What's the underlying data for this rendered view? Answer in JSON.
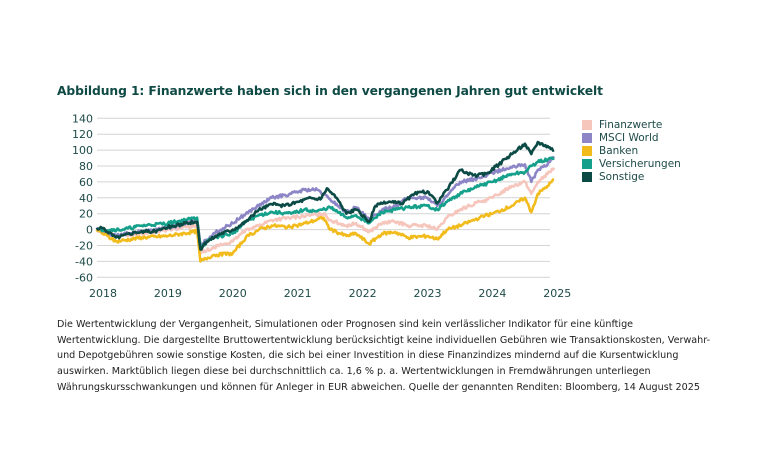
{
  "title": "Abbildung 1: Finanzwerte haben sich in den vergangenen Jahren gut entwickelt",
  "chart_data": {
    "type": "line",
    "title": "Abbildung 1: Finanzwerte haben sich in den vergangenen Jahren gut entwickelt",
    "xlabel": "",
    "ylabel": "",
    "xlim": [
      2017.9,
      2025
    ],
    "ylim": [
      -60,
      140
    ],
    "x_ticks": [
      "2018",
      "2019",
      "2020",
      "2021",
      "2022",
      "2023",
      "2024",
      "2025"
    ],
    "y_ticks": [
      "140",
      "120",
      "100",
      "80",
      "60",
      "40",
      "20",
      "0",
      "-20",
      "-40",
      "-60"
    ],
    "grid": "horizontal",
    "legend": "right",
    "series": [
      {
        "name": "Finanzwerte",
        "color": "#f6c6bd",
        "points": [
          [
            2017.9,
            0
          ],
          [
            2018.2,
            -8
          ],
          [
            2018.6,
            -5
          ],
          [
            2019.0,
            0
          ],
          [
            2019.45,
            5
          ],
          [
            2019.5,
            -30
          ],
          [
            2019.7,
            -22
          ],
          [
            2020.0,
            -15
          ],
          [
            2020.2,
            0
          ],
          [
            2020.4,
            5
          ],
          [
            2020.6,
            12
          ],
          [
            2020.9,
            15
          ],
          [
            2021.2,
            18
          ],
          [
            2021.4,
            20
          ],
          [
            2021.5,
            12
          ],
          [
            2021.75,
            5
          ],
          [
            2021.9,
            8
          ],
          [
            2022.1,
            -3
          ],
          [
            2022.3,
            8
          ],
          [
            2022.5,
            10
          ],
          [
            2022.7,
            5
          ],
          [
            2023.0,
            5
          ],
          [
            2023.15,
            0
          ],
          [
            2023.3,
            15
          ],
          [
            2023.5,
            25
          ],
          [
            2023.8,
            35
          ],
          [
            2024.0,
            40
          ],
          [
            2024.3,
            55
          ],
          [
            2024.5,
            60
          ],
          [
            2024.6,
            45
          ],
          [
            2024.7,
            60
          ],
          [
            2024.85,
            70
          ],
          [
            2024.95,
            78
          ]
        ]
      },
      {
        "name": "MSCI World",
        "color": "#8c86c6",
        "points": [
          [
            2017.9,
            0
          ],
          [
            2018.2,
            -8
          ],
          [
            2018.5,
            -3
          ],
          [
            2019.0,
            2
          ],
          [
            2019.45,
            12
          ],
          [
            2019.5,
            -20
          ],
          [
            2019.7,
            -5
          ],
          [
            2020.0,
            8
          ],
          [
            2020.2,
            20
          ],
          [
            2020.4,
            30
          ],
          [
            2020.6,
            40
          ],
          [
            2020.9,
            45
          ],
          [
            2021.1,
            50
          ],
          [
            2021.3,
            50
          ],
          [
            2021.5,
            38
          ],
          [
            2021.75,
            22
          ],
          [
            2021.9,
            28
          ],
          [
            2022.1,
            12
          ],
          [
            2022.3,
            25
          ],
          [
            2022.5,
            30
          ],
          [
            2022.7,
            40
          ],
          [
            2023.0,
            40
          ],
          [
            2023.15,
            30
          ],
          [
            2023.3,
            42
          ],
          [
            2023.5,
            60
          ],
          [
            2023.8,
            65
          ],
          [
            2024.0,
            72
          ],
          [
            2024.3,
            78
          ],
          [
            2024.5,
            82
          ],
          [
            2024.6,
            60
          ],
          [
            2024.7,
            75
          ],
          [
            2024.85,
            82
          ],
          [
            2024.95,
            92
          ]
        ]
      },
      {
        "name": "Banken",
        "color": "#f2bb1c",
        "points": [
          [
            2017.9,
            0
          ],
          [
            2018.2,
            -15
          ],
          [
            2018.6,
            -10
          ],
          [
            2019.0,
            -8
          ],
          [
            2019.45,
            -2
          ],
          [
            2019.5,
            -40
          ],
          [
            2019.7,
            -32
          ],
          [
            2020.0,
            -30
          ],
          [
            2020.2,
            -10
          ],
          [
            2020.4,
            0
          ],
          [
            2020.6,
            5
          ],
          [
            2020.9,
            3
          ],
          [
            2021.2,
            10
          ],
          [
            2021.4,
            15
          ],
          [
            2021.5,
            0
          ],
          [
            2021.75,
            -8
          ],
          [
            2021.9,
            -5
          ],
          [
            2022.1,
            -18
          ],
          [
            2022.3,
            -5
          ],
          [
            2022.5,
            -3
          ],
          [
            2022.7,
            -10
          ],
          [
            2023.0,
            -8
          ],
          [
            2023.15,
            -12
          ],
          [
            2023.3,
            0
          ],
          [
            2023.5,
            5
          ],
          [
            2023.8,
            15
          ],
          [
            2024.0,
            20
          ],
          [
            2024.3,
            30
          ],
          [
            2024.5,
            40
          ],
          [
            2024.6,
            22
          ],
          [
            2024.7,
            45
          ],
          [
            2024.85,
            55
          ],
          [
            2024.95,
            63
          ]
        ]
      },
      {
        "name": "Versicherungen",
        "color": "#14a08a",
        "points": [
          [
            2017.9,
            0
          ],
          [
            2018.3,
            0
          ],
          [
            2018.6,
            5
          ],
          [
            2019.0,
            8
          ],
          [
            2019.45,
            15
          ],
          [
            2019.5,
            -22
          ],
          [
            2019.7,
            -10
          ],
          [
            2020.0,
            -5
          ],
          [
            2020.2,
            10
          ],
          [
            2020.4,
            18
          ],
          [
            2020.6,
            22
          ],
          [
            2020.9,
            20
          ],
          [
            2021.1,
            25
          ],
          [
            2021.3,
            23
          ],
          [
            2021.5,
            28
          ],
          [
            2021.75,
            15
          ],
          [
            2021.9,
            18
          ],
          [
            2022.1,
            8
          ],
          [
            2022.3,
            22
          ],
          [
            2022.5,
            25
          ],
          [
            2022.7,
            28
          ],
          [
            2023.0,
            30
          ],
          [
            2023.15,
            25
          ],
          [
            2023.3,
            35
          ],
          [
            2023.5,
            45
          ],
          [
            2023.8,
            55
          ],
          [
            2024.0,
            60
          ],
          [
            2024.3,
            70
          ],
          [
            2024.5,
            72
          ],
          [
            2024.6,
            80
          ],
          [
            2024.7,
            85
          ],
          [
            2024.85,
            88
          ],
          [
            2024.95,
            90
          ]
        ]
      },
      {
        "name": "Sonstige",
        "color": "#0b4a45",
        "points": [
          [
            2017.9,
            0
          ],
          [
            2018.0,
            2
          ],
          [
            2018.2,
            -10
          ],
          [
            2018.5,
            -3
          ],
          [
            2018.8,
            -2
          ],
          [
            2019.0,
            3
          ],
          [
            2019.3,
            8
          ],
          [
            2019.45,
            10
          ],
          [
            2019.5,
            -25
          ],
          [
            2019.6,
            -15
          ],
          [
            2019.8,
            -5
          ],
          [
            2020.0,
            0
          ],
          [
            2020.2,
            10
          ],
          [
            2020.4,
            25
          ],
          [
            2020.6,
            32
          ],
          [
            2020.8,
            30
          ],
          [
            2021.0,
            35
          ],
          [
            2021.2,
            40
          ],
          [
            2021.35,
            38
          ],
          [
            2021.45,
            52
          ],
          [
            2021.6,
            40
          ],
          [
            2021.75,
            20
          ],
          [
            2021.9,
            25
          ],
          [
            2022.1,
            10
          ],
          [
            2022.2,
            30
          ],
          [
            2022.4,
            35
          ],
          [
            2022.6,
            33
          ],
          [
            2022.8,
            45
          ],
          [
            2023.0,
            48
          ],
          [
            2023.15,
            33
          ],
          [
            2023.3,
            50
          ],
          [
            2023.5,
            75
          ],
          [
            2023.7,
            68
          ],
          [
            2023.9,
            70
          ],
          [
            2024.1,
            82
          ],
          [
            2024.3,
            95
          ],
          [
            2024.5,
            108
          ],
          [
            2024.6,
            95
          ],
          [
            2024.7,
            110
          ],
          [
            2024.85,
            105
          ],
          [
            2024.95,
            100
          ]
        ]
      }
    ]
  },
  "footnote": "Die Wertentwicklung der Vergangenheit, Simulationen oder Prognosen sind kein verlässlicher Indikator für eine künftige Wertentwicklung. Die dargestellte Bruttowertentwicklung berücksichtigt keine individuellen Gebühren wie Transaktionskosten, Verwahr- und Depotgebühren sowie sonstige Kosten, die sich bei einer Investition in diese Finanzindizes mindernd auf die Kursentwicklung auswirken. Marktüblich liegen diese bei durchschnittlich ca. 1,6 % p. a. Wertentwicklungen in Fremdwährungen unterliegen Währungskursschwankungen und können für Anleger in EUR abweichen. Quelle der genannten Renditen: Bloomberg, 14 August 2025"
}
